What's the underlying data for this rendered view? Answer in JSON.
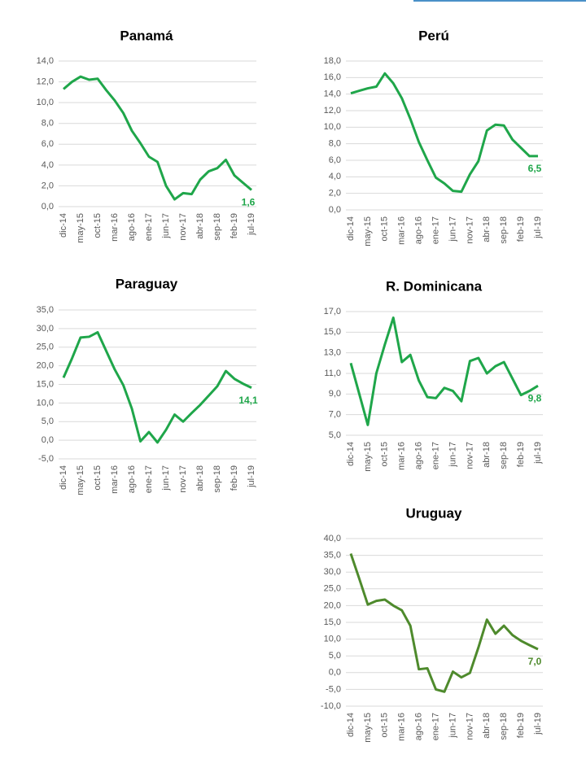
{
  "chart_data": [
    {
      "type": "line",
      "title": "Panamá",
      "categories": [
        "dic-14",
        null,
        "may-15",
        null,
        "oct-15",
        null,
        "mar-16",
        null,
        "ago-16",
        null,
        "ene-17",
        null,
        "jun-17",
        null,
        "nov-17",
        null,
        "abr-18",
        null,
        "sep-18",
        null,
        "feb-19",
        null,
        "jul-19"
      ],
      "series": [
        {
          "name": "Panamá",
          "color": "#1fa64a",
          "values": [
            11.3,
            12.0,
            12.5,
            12.2,
            12.3,
            11.2,
            10.2,
            9.0,
            7.3,
            6.1,
            4.8,
            4.3,
            2.0,
            0.7,
            1.3,
            1.2,
            2.6,
            3.4,
            3.7,
            4.5,
            3.0,
            2.3,
            1.6
          ],
          "value_labels": [
            null,
            null,
            null,
            null,
            null,
            null,
            null,
            null,
            null,
            null,
            null,
            null,
            null,
            null,
            null,
            null,
            null,
            null,
            null,
            null,
            null,
            null,
            "1,6"
          ]
        }
      ],
      "ylim": [
        0,
        14
      ],
      "yticks": [
        {
          "value": 0,
          "label": "0,0"
        },
        {
          "value": 2,
          "label": "2,0"
        },
        {
          "value": 4,
          "label": "4,0"
        },
        {
          "value": 6,
          "label": "6,0"
        },
        {
          "value": 8,
          "label": "8,0"
        },
        {
          "value": 10,
          "label": "10,0"
        },
        {
          "value": 12,
          "label": "12,0"
        },
        {
          "value": 14,
          "label": "14,0"
        }
      ],
      "grid": true
    },
    {
      "type": "line",
      "title": "Perú",
      "categories": [
        "dic-14",
        null,
        "may-15",
        null,
        "oct-15",
        null,
        "mar-16",
        null,
        "ago-16",
        null,
        "ene-17",
        null,
        "jun-17",
        null,
        "nov-17",
        null,
        "abr-18",
        null,
        "sep-18",
        null,
        "feb-19",
        null,
        "jul-19"
      ],
      "series": [
        {
          "name": "Perú",
          "color": "#1fa64a",
          "values": [
            14.1,
            14.4,
            14.7,
            14.9,
            16.5,
            15.3,
            13.5,
            11.0,
            8.2,
            6.0,
            3.9,
            3.2,
            2.3,
            2.2,
            4.3,
            5.9,
            9.6,
            10.3,
            10.2,
            8.5,
            7.5,
            6.5,
            6.5
          ],
          "value_labels": [
            null,
            null,
            null,
            null,
            null,
            null,
            null,
            null,
            null,
            null,
            null,
            null,
            null,
            null,
            null,
            null,
            null,
            null,
            null,
            null,
            null,
            null,
            "6,5"
          ]
        }
      ],
      "ylim": [
        0,
        18
      ],
      "yticks": [
        {
          "value": 0,
          "label": "0,0"
        },
        {
          "value": 2,
          "label": "2,0"
        },
        {
          "value": 4,
          "label": "4,0"
        },
        {
          "value": 6,
          "label": "6,0"
        },
        {
          "value": 8,
          "label": "8,0"
        },
        {
          "value": 10,
          "label": "10,0"
        },
        {
          "value": 12,
          "label": "12,0"
        },
        {
          "value": 14,
          "label": "14,0"
        },
        {
          "value": 16,
          "label": "16,0"
        },
        {
          "value": 18,
          "label": "18,0"
        }
      ],
      "grid": true
    },
    {
      "type": "line",
      "title": "Paraguay",
      "categories": [
        "dic-14",
        null,
        "may-15",
        null,
        "oct-15",
        null,
        "mar-16",
        null,
        "ago-16",
        null,
        "ene-17",
        null,
        "jun-17",
        null,
        "nov-17",
        null,
        "abr-18",
        null,
        "sep-18",
        null,
        "feb-19",
        null,
        "jul-19"
      ],
      "series": [
        {
          "name": "Paraguay",
          "color": "#1fa64a",
          "values": [
            16.8,
            22.0,
            27.6,
            27.8,
            29.0,
            24.0,
            19.0,
            14.8,
            8.5,
            -0.3,
            2.2,
            -0.6,
            2.8,
            6.9,
            5.0,
            7.3,
            9.5,
            12.0,
            14.5,
            18.6,
            16.5,
            15.2,
            14.1
          ],
          "value_labels": [
            null,
            null,
            null,
            null,
            null,
            null,
            null,
            null,
            null,
            null,
            null,
            null,
            null,
            null,
            null,
            null,
            null,
            null,
            null,
            null,
            null,
            null,
            "14,1"
          ]
        }
      ],
      "ylim": [
        -5,
        35
      ],
      "yticks": [
        {
          "value": -5,
          "label": "-5,0"
        },
        {
          "value": 0,
          "label": "0,0"
        },
        {
          "value": 5,
          "label": "5,0"
        },
        {
          "value": 10,
          "label": "10,0"
        },
        {
          "value": 15,
          "label": "15,0"
        },
        {
          "value": 20,
          "label": "20,0"
        },
        {
          "value": 25,
          "label": "25,0"
        },
        {
          "value": 30,
          "label": "30,0"
        },
        {
          "value": 35,
          "label": "35,0"
        }
      ],
      "grid": true
    },
    {
      "type": "line",
      "title": "R. Dominicana",
      "categories": [
        "dic-14",
        null,
        "may-15",
        null,
        "oct-15",
        null,
        "mar-16",
        null,
        "ago-16",
        null,
        "ene-17",
        null,
        "jun-17",
        null,
        "nov-17",
        null,
        "abr-18",
        null,
        "sep-18",
        null,
        "feb-19",
        null,
        "jul-19"
      ],
      "series": [
        {
          "name": "R. Dominicana",
          "color": "#1fa64a",
          "values": [
            12.0,
            9.0,
            6.0,
            11.0,
            13.8,
            16.4,
            12.1,
            12.8,
            10.3,
            8.7,
            8.6,
            9.6,
            9.3,
            8.3,
            12.2,
            12.5,
            11.0,
            11.7,
            12.1,
            10.5,
            8.9,
            9.3,
            9.8
          ],
          "value_labels": [
            null,
            null,
            null,
            null,
            null,
            null,
            null,
            null,
            null,
            null,
            null,
            null,
            null,
            null,
            null,
            null,
            null,
            null,
            null,
            null,
            null,
            null,
            "9,8"
          ]
        }
      ],
      "ylim": [
        5,
        17
      ],
      "yticks": [
        {
          "value": 5,
          "label": "5,0"
        },
        {
          "value": 7,
          "label": "7,0"
        },
        {
          "value": 9,
          "label": "9,0"
        },
        {
          "value": 11,
          "label": "11,0"
        },
        {
          "value": 13,
          "label": "13,0"
        },
        {
          "value": 15,
          "label": "15,0"
        },
        {
          "value": 17,
          "label": "17,0"
        }
      ],
      "grid": true
    },
    {
      "type": "line",
      "title": "Uruguay",
      "categories": [
        "dic-14",
        null,
        "may-15",
        null,
        "oct-15",
        null,
        "mar-16",
        null,
        "ago-16",
        null,
        "ene-17",
        null,
        "jun-17",
        null,
        "nov-17",
        null,
        "abr-18",
        null,
        "sep-18",
        null,
        "feb-19",
        null,
        "jul-19"
      ],
      "series": [
        {
          "name": "Uruguay",
          "color": "#4e8a2c",
          "values": [
            35.5,
            28.0,
            20.3,
            21.4,
            21.8,
            20.0,
            18.6,
            14.0,
            1.0,
            1.3,
            -5.0,
            -5.7,
            0.3,
            -1.4,
            -0.1,
            7.5,
            15.8,
            11.6,
            14.0,
            11.2,
            9.5,
            8.2,
            7.0
          ],
          "value_labels": [
            null,
            null,
            null,
            null,
            null,
            null,
            null,
            null,
            null,
            null,
            null,
            null,
            null,
            null,
            null,
            null,
            null,
            null,
            null,
            null,
            null,
            null,
            "7,0"
          ]
        }
      ],
      "ylim": [
        -10,
        40
      ],
      "yticks": [
        {
          "value": -10,
          "label": "-10,0"
        },
        {
          "value": -5,
          "label": "-5,0"
        },
        {
          "value": 0,
          "label": "0,0"
        },
        {
          "value": 5,
          "label": "5,0"
        },
        {
          "value": 10,
          "label": "10,0"
        },
        {
          "value": 15,
          "label": "15,0"
        },
        {
          "value": 20,
          "label": "20,0"
        },
        {
          "value": 25,
          "label": "25,0"
        },
        {
          "value": 30,
          "label": "30,0"
        },
        {
          "value": 35,
          "label": "35,0"
        },
        {
          "value": 40,
          "label": "40,0"
        }
      ],
      "grid": true
    }
  ]
}
